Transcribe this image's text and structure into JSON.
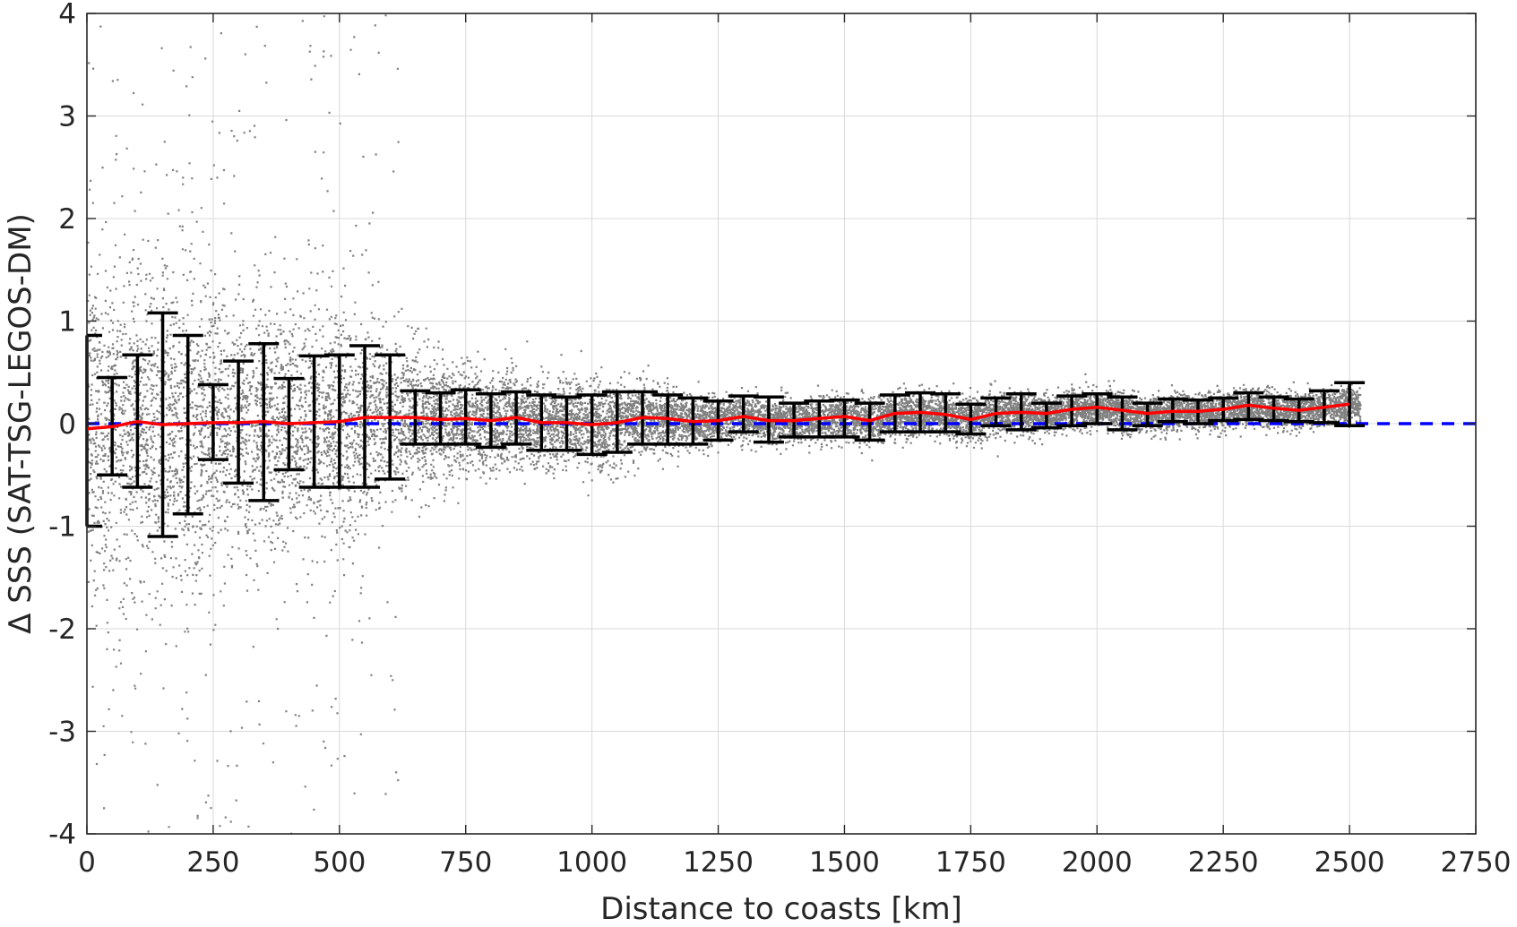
{
  "chart_data": {
    "type": "scatter",
    "title": "",
    "xlabel": "Distance to coasts [km]",
    "ylabel": "Δ SSS (SAT-TSG-LEGOS-DM)",
    "xlim": [
      0,
      2750
    ],
    "ylim": [
      -4,
      4
    ],
    "xticks": [
      "0",
      "250",
      "500",
      "750",
      "1000",
      "1250",
      "1500",
      "1750",
      "2000",
      "2250",
      "2500",
      "2750"
    ],
    "yticks": [
      "-4",
      "-3",
      "-2",
      "-1",
      "0",
      "1",
      "2",
      "3",
      "4"
    ],
    "grid": true,
    "colors": {
      "scatter": "#808080",
      "mean_line": "#ff0000",
      "zero_line": "#0000ff",
      "error_bars": "#000000"
    },
    "series": [
      {
        "kind": "scatter",
        "note_spread_envelope": [
          [
            0,
            2.5
          ],
          [
            100,
            2.0
          ],
          [
            200,
            2.2
          ],
          [
            300,
            1.8
          ],
          [
            400,
            1.6
          ],
          [
            500,
            1.6
          ],
          [
            600,
            1.2
          ],
          [
            700,
            0.8
          ],
          [
            800,
            0.7
          ],
          [
            900,
            0.6
          ],
          [
            1000,
            0.6
          ],
          [
            1100,
            0.5
          ],
          [
            1200,
            0.35
          ],
          [
            1300,
            0.3
          ],
          [
            1500,
            0.3
          ],
          [
            1750,
            0.3
          ],
          [
            2000,
            0.25
          ],
          [
            2250,
            0.25
          ],
          [
            2500,
            0.25
          ]
        ]
      },
      {
        "kind": "line",
        "x": [
          0,
          50,
          100,
          150,
          200,
          250,
          300,
          350,
          400,
          450,
          500,
          550,
          600,
          650,
          700,
          750,
          800,
          850,
          900,
          950,
          1000,
          1050,
          1100,
          1150,
          1200,
          1250,
          1300,
          1350,
          1400,
          1450,
          1500,
          1550,
          1600,
          1650,
          1700,
          1750,
          1800,
          1850,
          1900,
          1950,
          2000,
          2050,
          2100,
          2150,
          2200,
          2250,
          2300,
          2350,
          2400,
          2450,
          2500
        ],
        "y": [
          -0.05,
          -0.03,
          0.02,
          -0.01,
          0.0,
          0.01,
          0.01,
          0.02,
          0.0,
          0.01,
          0.02,
          0.06,
          0.06,
          0.06,
          0.04,
          0.05,
          0.03,
          0.06,
          0.01,
          0.01,
          -0.01,
          0.01,
          0.06,
          0.05,
          0.02,
          0.03,
          0.07,
          0.03,
          0.03,
          0.05,
          0.07,
          0.03,
          0.1,
          0.11,
          0.09,
          0.04,
          0.1,
          0.11,
          0.1,
          0.14,
          0.16,
          0.13,
          0.1,
          0.12,
          0.12,
          0.14,
          0.18,
          0.15,
          0.13,
          0.16,
          0.19
        ]
      },
      {
        "kind": "errorbar",
        "x": [
          0,
          50,
          100,
          150,
          200,
          250,
          300,
          350,
          400,
          450,
          500,
          550,
          600,
          650,
          700,
          750,
          800,
          850,
          900,
          950,
          1000,
          1050,
          1100,
          1150,
          1200,
          1250,
          1300,
          1350,
          1400,
          1450,
          1500,
          1550,
          1600,
          1650,
          1700,
          1750,
          1800,
          1850,
          1900,
          1950,
          2000,
          2050,
          2100,
          2150,
          2200,
          2250,
          2300,
          2350,
          2400,
          2450,
          2500
        ],
        "lower": [
          -1.0,
          -0.5,
          -0.62,
          -1.1,
          -0.88,
          -0.35,
          -0.58,
          -0.75,
          -0.45,
          -0.62,
          -0.62,
          -0.62,
          -0.54,
          -0.2,
          -0.2,
          -0.2,
          -0.23,
          -0.2,
          -0.26,
          -0.26,
          -0.3,
          -0.28,
          -0.2,
          -0.2,
          -0.2,
          -0.16,
          -0.08,
          -0.18,
          -0.13,
          -0.13,
          -0.13,
          -0.16,
          -0.08,
          -0.08,
          -0.08,
          -0.1,
          -0.02,
          -0.06,
          -0.04,
          -0.02,
          0.0,
          -0.06,
          -0.02,
          0.02,
          0.0,
          0.03,
          0.04,
          0.03,
          0.02,
          0.01,
          -0.02
        ],
        "upper": [
          0.86,
          0.45,
          0.67,
          1.08,
          0.86,
          0.38,
          0.61,
          0.78,
          0.44,
          0.66,
          0.67,
          0.76,
          0.67,
          0.32,
          0.3,
          0.33,
          0.29,
          0.31,
          0.28,
          0.26,
          0.28,
          0.31,
          0.31,
          0.28,
          0.25,
          0.22,
          0.27,
          0.26,
          0.2,
          0.22,
          0.23,
          0.2,
          0.28,
          0.3,
          0.29,
          0.19,
          0.25,
          0.29,
          0.2,
          0.27,
          0.29,
          0.26,
          0.2,
          0.24,
          0.23,
          0.25,
          0.3,
          0.26,
          0.24,
          0.32,
          0.4
        ]
      },
      {
        "kind": "reference_line",
        "y": 0,
        "style": "dashed"
      }
    ]
  }
}
